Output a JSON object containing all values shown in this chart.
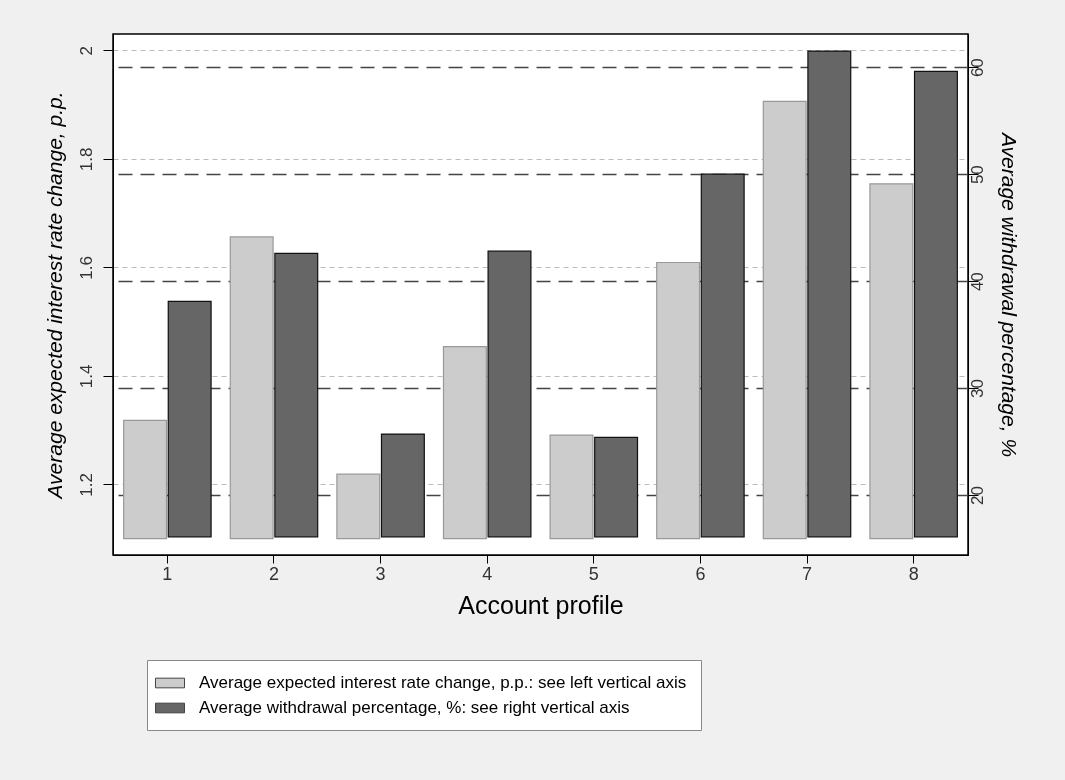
{
  "chart_data": {
    "type": "bar",
    "xlabel": "Account profile",
    "ylabel": "Average expected interest rate change, p.p.",
    "y2label": "Average withdrawal percentage, %",
    "categories": [
      "1",
      "2",
      "3",
      "4",
      "5",
      "6",
      "7",
      "8"
    ],
    "series": [
      {
        "name": "Average expected interest rate change, p.p.: see left vertical axis",
        "color": "#cccccc",
        "base": [
          1.1,
          1.1,
          1.1,
          1.1,
          1.1,
          1.1,
          1.1,
          1.1
        ],
        "values": [
          0.218,
          0.556,
          0.119,
          0.354,
          0.191,
          0.509,
          0.806,
          0.654
        ]
      },
      {
        "name": "Average withdrawal percentage, %: see right vertical axis",
        "color": "#666666",
        "axis": "y2",
        "base": [
          16.1,
          16.1,
          16.1,
          16.1,
          16.1,
          16.1,
          16.1,
          16.1
        ],
        "values": [
          22.0,
          26.5,
          9.6,
          26.7,
          9.3,
          33.9,
          45.4,
          43.5
        ]
      }
    ],
    "ylim": [
      1.07,
      2.03
    ],
    "yticks": [
      1.2,
      1.4,
      1.6,
      1.8,
      {
        "value": 2.0,
        "label": "2"
      }
    ],
    "y2lim": [
      14.4,
      63.1
    ],
    "y2ticks": [
      20,
      30,
      40,
      50,
      60
    ],
    "grid": true,
    "legend": "bottom"
  }
}
